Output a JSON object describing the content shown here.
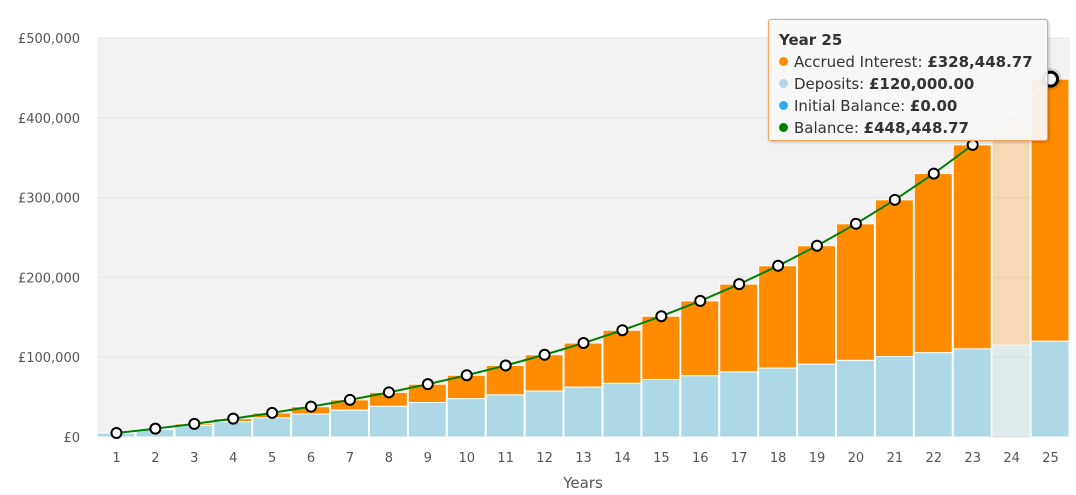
{
  "chart_data": {
    "type": "bar",
    "stacked": true,
    "xlabel": "Years",
    "ylabel": "",
    "ylim": [
      0,
      500000
    ],
    "yticks": [
      "£0",
      "£100,000",
      "£200,000",
      "£300,000",
      "£400,000",
      "£500,000"
    ],
    "ytick_values": [
      0,
      100000,
      200000,
      300000,
      400000,
      500000
    ],
    "grid": true,
    "categories": [
      "1",
      "2",
      "3",
      "4",
      "5",
      "6",
      "7",
      "8",
      "9",
      "10",
      "11",
      "12",
      "13",
      "14",
      "15",
      "16",
      "17",
      "18",
      "19",
      "20",
      "21",
      "22",
      "23",
      "24",
      "25"
    ],
    "series": [
      {
        "name": "Deposits",
        "type": "bar",
        "color": "#add8e6",
        "values": [
          4800,
          9600,
          14400,
          19200,
          24000,
          28800,
          33600,
          38400,
          43200,
          48000,
          52800,
          57600,
          62400,
          67200,
          72000,
          76800,
          81600,
          86400,
          91200,
          96000,
          100800,
          105600,
          110400,
          115200,
          120000
        ]
      },
      {
        "name": "Accrued Interest",
        "type": "bar",
        "color": "#ff8c00",
        "values": [
          203,
          874,
          2061,
          3808,
          6170,
          9203,
          12971,
          17543,
          22994,
          29406,
          36870,
          45485,
          55358,
          66608,
          79363,
          93765,
          109968,
          128142,
          148470,
          171157,
          196421,
          224506,
          255675,
          290219,
          328449
        ]
      },
      {
        "name": "Initial Balance",
        "type": "bar",
        "color": "#33aaee",
        "values": [
          0,
          0,
          0,
          0,
          0,
          0,
          0,
          0,
          0,
          0,
          0,
          0,
          0,
          0,
          0,
          0,
          0,
          0,
          0,
          0,
          0,
          0,
          0,
          0,
          0
        ]
      },
      {
        "name": "Balance",
        "type": "line",
        "color": "#008000",
        "values": [
          5003,
          10474,
          16461,
          23008,
          30170,
          38003,
          46571,
          55943,
          66194,
          77406,
          89670,
          103085,
          117758,
          133808,
          151363,
          170565,
          191568,
          214542,
          239670,
          267157,
          297221,
          330106,
          366075,
          405419,
          448449
        ]
      }
    ],
    "hovered_index": 24,
    "tooltip": {
      "title": "Year 25",
      "rows": [
        {
          "label": "Accrued Interest:",
          "value": "£328,448.77",
          "color": "#ff8c00"
        },
        {
          "label": "Deposits:",
          "value": "£120,000.00",
          "color": "#add8e6"
        },
        {
          "label": "Initial Balance:",
          "value": "£0.00",
          "color": "#33aaee"
        },
        {
          "label": "Balance:",
          "value": "£448,448.77",
          "color": "#008000"
        }
      ]
    }
  }
}
